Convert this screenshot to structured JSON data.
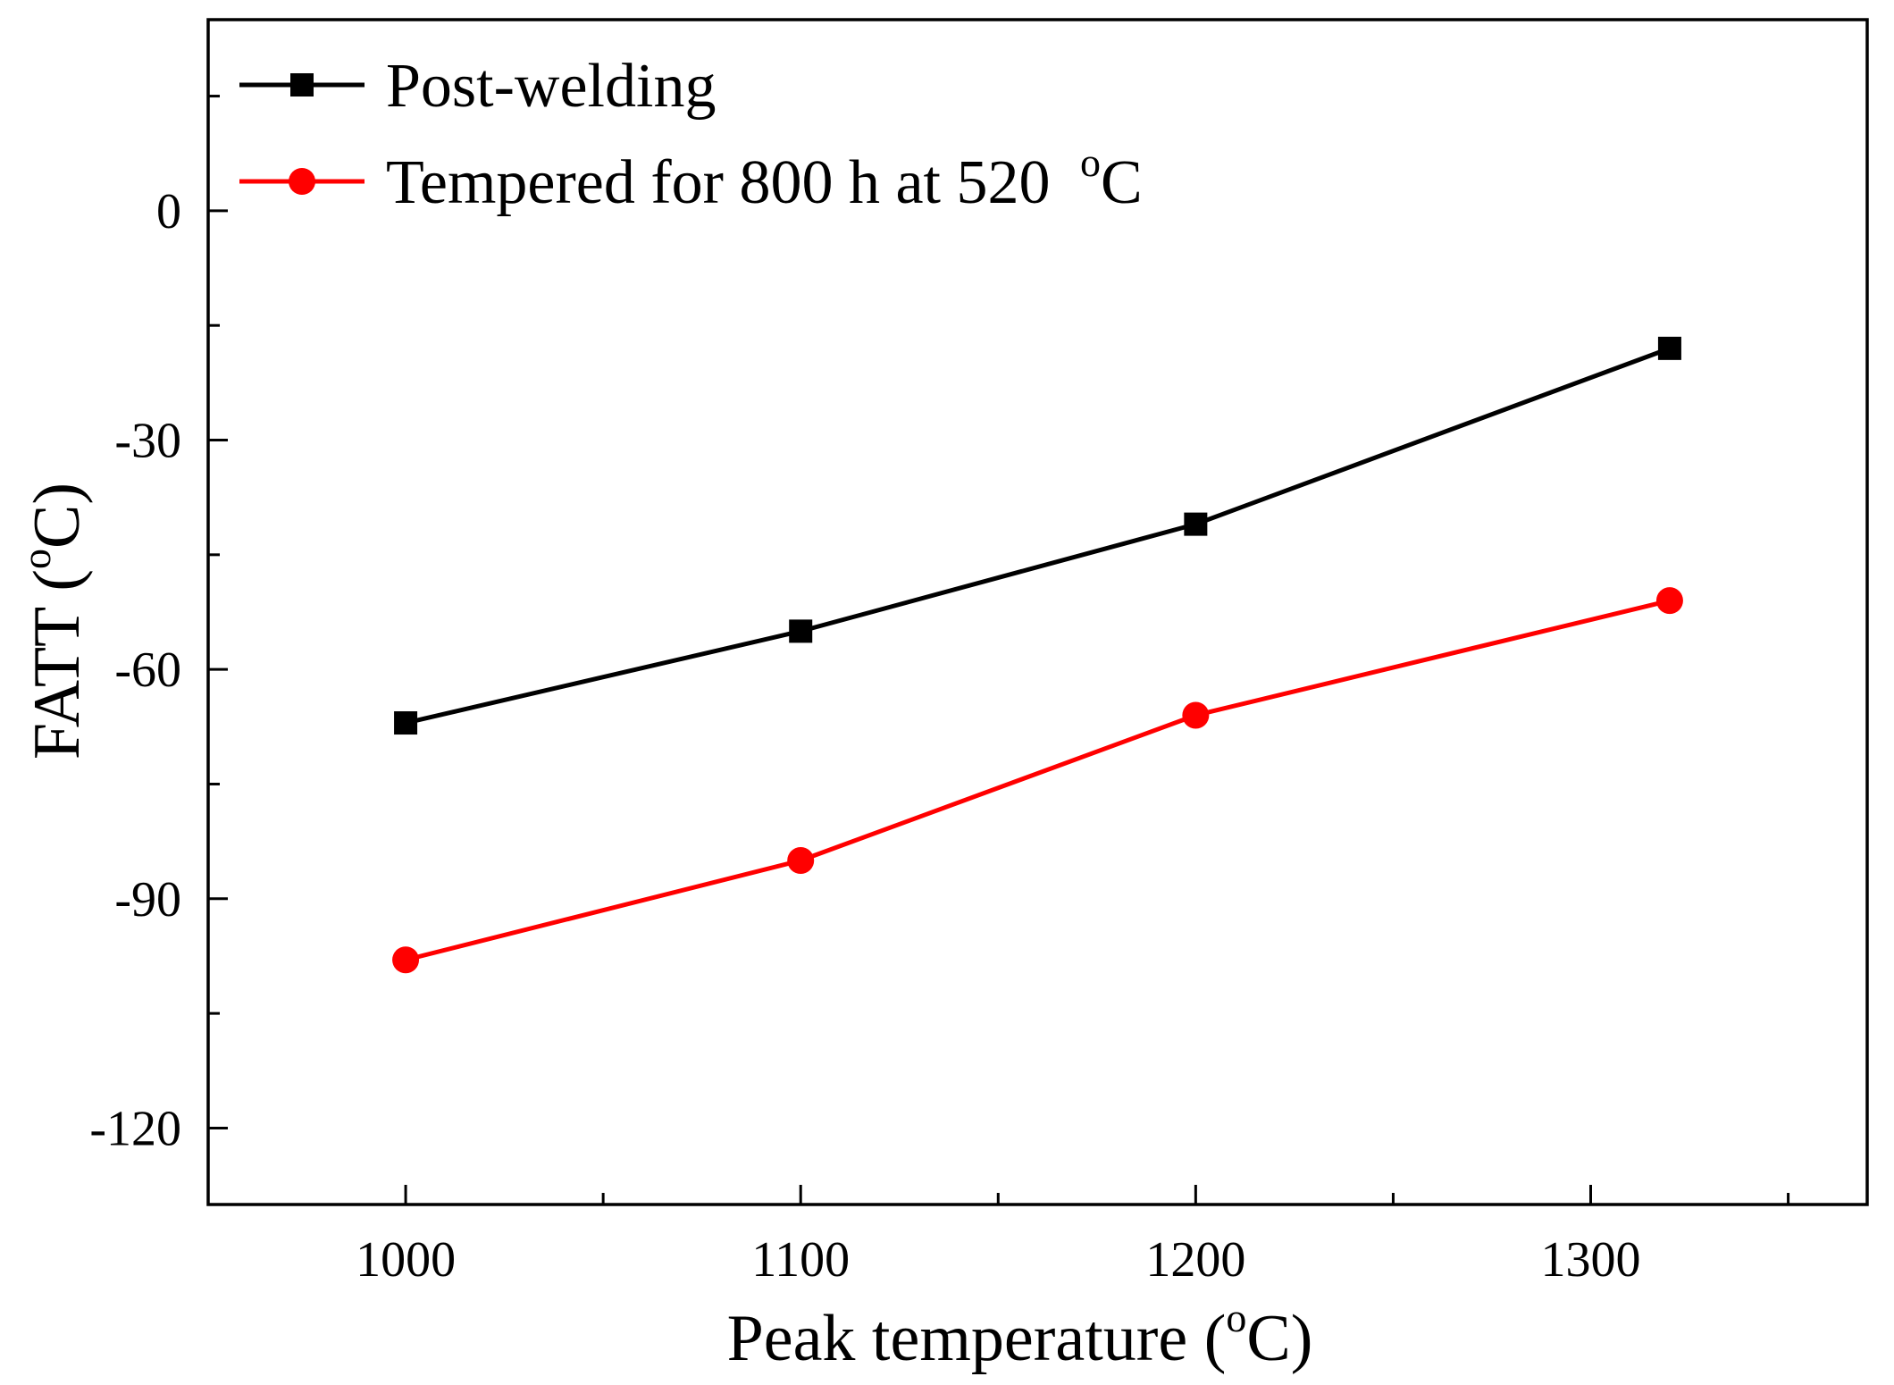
{
  "chart_data": {
    "type": "line",
    "title": "",
    "xlabel": {
      "prefix": "Peak temperature (",
      "superscript": "o",
      "suffix": "C)"
    },
    "ylabel": {
      "prefix": "FATT (",
      "superscript": "o",
      "suffix": "C)"
    },
    "xlim": [
      950,
      1370
    ],
    "ylim": [
      -130,
      25
    ],
    "xticks": [
      1000,
      1100,
      1200,
      1300
    ],
    "xtick_labels": [
      "1000",
      "1100",
      "1200",
      "1300"
    ],
    "xminor_ticks": [
      1050,
      1150,
      1250,
      1350
    ],
    "yticks": [
      0,
      -30,
      -60,
      -90,
      -120
    ],
    "ytick_labels": [
      "0",
      "-30",
      "-60",
      "-90",
      "-120"
    ],
    "yminor_ticks": [
      15,
      -15,
      -45,
      -75,
      -105
    ],
    "grid": false,
    "legend_position": "top-left",
    "series": [
      {
        "name": "Post-welding",
        "legend_parts": {
          "text": "Post-welding",
          "superscript": "",
          "suffix": ""
        },
        "color": "#000000",
        "marker": "square",
        "x": [
          1000,
          1100,
          1200,
          1320
        ],
        "y": [
          -67,
          -55,
          -41,
          -18
        ]
      },
      {
        "name": "Tempered for 800 h at 520 °C",
        "legend_parts": {
          "text": "Tempered for 800 h at 520 ",
          "superscript": "o",
          "suffix": "C"
        },
        "color": "#ff0000",
        "marker": "circle",
        "x": [
          1000,
          1100,
          1200,
          1320
        ],
        "y": [
          -98,
          -85,
          -66,
          -51
        ]
      }
    ]
  }
}
